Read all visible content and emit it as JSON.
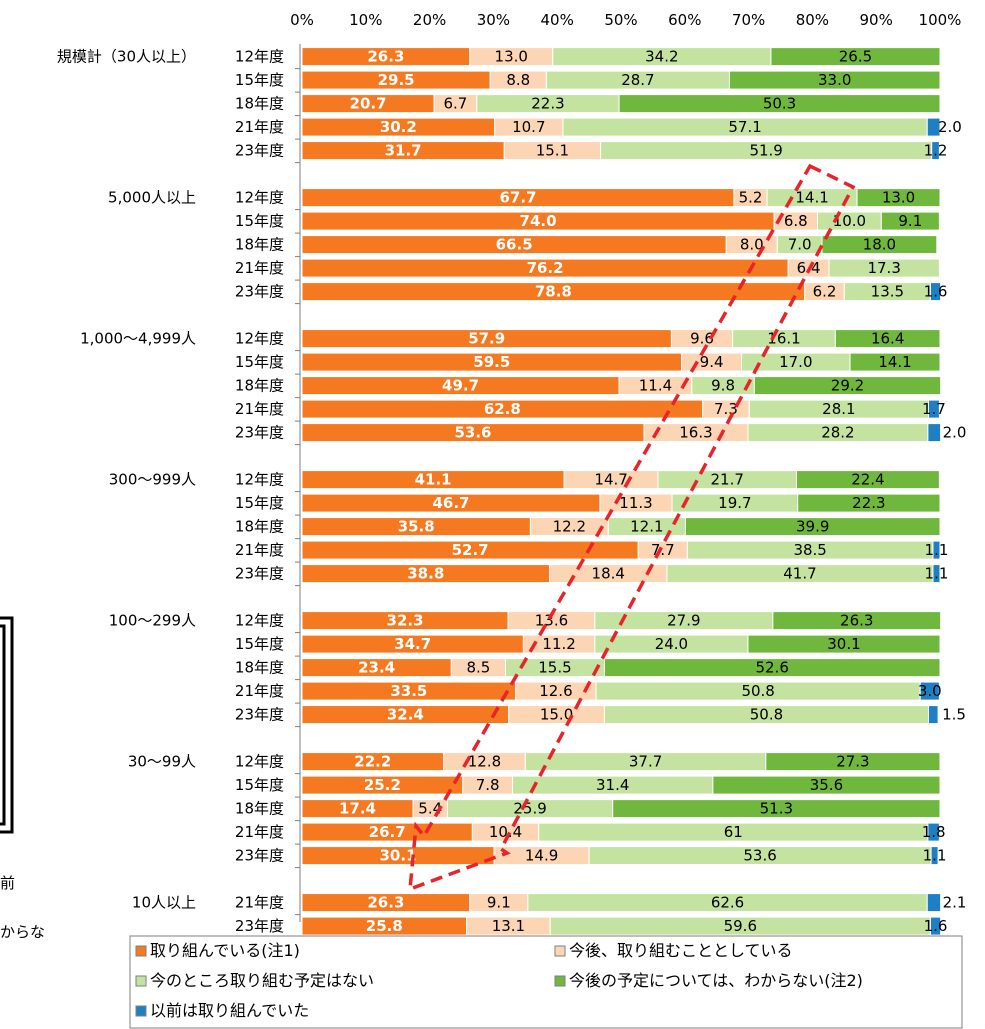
{
  "chart_data": {
    "type": "bar",
    "orientation": "horizontal",
    "stacked": true,
    "percent": true,
    "xlim": [
      0,
      100
    ],
    "x_ticks": [
      "0%",
      "10%",
      "20%",
      "30%",
      "40%",
      "50%",
      "60%",
      "70%",
      "80%",
      "90%",
      "100%"
    ],
    "grid": false,
    "legend_position": "bottom",
    "series": [
      {
        "name": "取り組んでいる(注1)",
        "color": "#f47920",
        "label_color": "#ffffff"
      },
      {
        "name": "今後、取り組むこととしている",
        "color": "#fcd5b4",
        "label_color": "#000000"
      },
      {
        "name": "今のところ取り組む予定はない",
        "color": "#c4e3a0",
        "label_color": "#000000"
      },
      {
        "name": "今後の予定については、わからない(注2)",
        "color": "#70b83d",
        "label_color": "#000000"
      },
      {
        "name": "以前は取り組んでいた",
        "color": "#1f7fc4",
        "label_color": "#000000"
      }
    ],
    "groups": [
      {
        "label": "規模計（30人以上）",
        "rows": [
          {
            "year": "12年度",
            "values": [
              26.3,
              13.0,
              34.2,
              26.5
            ],
            "labels": [
              "26.3",
              "13.0",
              "34.2",
              "26.5"
            ]
          },
          {
            "year": "15年度",
            "values": [
              29.5,
              8.8,
              28.7,
              33.0
            ],
            "labels": [
              "29.5",
              "8.8",
              "28.7",
              "33.0"
            ]
          },
          {
            "year": "18年度",
            "values": [
              20.7,
              6.7,
              22.3,
              50.3
            ],
            "labels": [
              "20.7",
              "6.7",
              "22.3",
              "50.3"
            ]
          },
          {
            "year": "21年度",
            "values": [
              30.2,
              10.7,
              57.1,
              0,
              2.0
            ],
            "labels": [
              "30.2",
              "10.7",
              "57.1",
              "",
              "2.0"
            ]
          },
          {
            "year": "23年度",
            "values": [
              31.7,
              15.1,
              51.9,
              0,
              1.2
            ],
            "labels": [
              "31.7",
              "15.1",
              "51.9",
              "",
              "1.2"
            ]
          }
        ]
      },
      {
        "label": "5,000人以上",
        "rows": [
          {
            "year": "12年度",
            "values": [
              67.7,
              5.2,
              14.1,
              13.0
            ],
            "labels": [
              "67.7",
              "5.2",
              "14.1",
              "13.0"
            ]
          },
          {
            "year": "15年度",
            "values": [
              74.0,
              6.8,
              10.0,
              9.1
            ],
            "labels": [
              "74.0",
              "6.8",
              "10.0",
              "9.1"
            ]
          },
          {
            "year": "18年度",
            "values": [
              66.5,
              8.0,
              7.0,
              18.0
            ],
            "labels": [
              "66.5",
              "8.0",
              "7.0",
              "18.0"
            ]
          },
          {
            "year": "21年度",
            "values": [
              76.2,
              6.4,
              17.3
            ],
            "labels": [
              "76.2",
              "6.4",
              "17.3"
            ]
          },
          {
            "year": "23年度",
            "values": [
              78.8,
              6.2,
              13.5,
              0,
              1.6
            ],
            "labels": [
              "78.8",
              "6.2",
              "13.5",
              "",
              "1.6"
            ]
          }
        ]
      },
      {
        "label": "1,000～4,999人",
        "rows": [
          {
            "year": "12年度",
            "values": [
              57.9,
              9.6,
              16.1,
              16.4
            ],
            "labels": [
              "57.9",
              "9.6",
              "16.1",
              "16.4"
            ]
          },
          {
            "year": "15年度",
            "values": [
              59.5,
              9.4,
              17.0,
              14.1
            ],
            "labels": [
              "59.5",
              "9.4",
              "17.0",
              "14.1"
            ]
          },
          {
            "year": "18年度",
            "values": [
              49.7,
              11.4,
              9.8,
              29.2
            ],
            "labels": [
              "49.7",
              "11.4",
              "9.8",
              "29.2"
            ]
          },
          {
            "year": "21年度",
            "values": [
              62.8,
              7.3,
              28.1,
              0,
              1.7
            ],
            "labels": [
              "62.8",
              "7.3",
              "28.1",
              "",
              "1.7"
            ]
          },
          {
            "year": "23年度",
            "values": [
              53.6,
              16.3,
              28.2,
              0,
              2.0
            ],
            "labels": [
              "53.6",
              "16.3",
              "28.2",
              "",
              "2.0"
            ]
          }
        ]
      },
      {
        "label": "300～999人",
        "rows": [
          {
            "year": "12年度",
            "values": [
              41.1,
              14.7,
              21.7,
              22.4
            ],
            "labels": [
              "41.1",
              "14.7",
              "21.7",
              "22.4"
            ]
          },
          {
            "year": "15年度",
            "values": [
              46.7,
              11.3,
              19.7,
              22.3
            ],
            "labels": [
              "46.7",
              "11.3",
              "19.7",
              "22.3"
            ]
          },
          {
            "year": "18年度",
            "values": [
              35.8,
              12.2,
              12.1,
              39.9
            ],
            "labels": [
              "35.8",
              "12.2",
              "12.1",
              "39.9"
            ]
          },
          {
            "year": "21年度",
            "values": [
              52.7,
              7.7,
              38.5,
              0,
              1.1
            ],
            "labels": [
              "52.7",
              "7.7",
              "38.5",
              "",
              "1.1"
            ]
          },
          {
            "year": "23年度",
            "values": [
              38.8,
              18.4,
              41.7,
              0,
              1.1
            ],
            "labels": [
              "38.8",
              "18.4",
              "41.7",
              "",
              "1.1"
            ]
          }
        ]
      },
      {
        "label": "100～299人",
        "rows": [
          {
            "year": "12年度",
            "values": [
              32.3,
              13.6,
              27.9,
              26.3
            ],
            "labels": [
              "32.3",
              "13.6",
              "27.9",
              "26.3"
            ]
          },
          {
            "year": "15年度",
            "values": [
              34.7,
              11.2,
              24.0,
              30.1
            ],
            "labels": [
              "34.7",
              "11.2",
              "24.0",
              "30.1"
            ]
          },
          {
            "year": "18年度",
            "values": [
              23.4,
              8.5,
              15.5,
              52.6
            ],
            "labels": [
              "23.4",
              "8.5",
              "15.5",
              "52.6"
            ]
          },
          {
            "year": "21年度",
            "values": [
              33.5,
              12.6,
              50.8,
              0,
              3.0
            ],
            "labels": [
              "33.5",
              "12.6",
              "50.8",
              "",
              "3.0"
            ]
          },
          {
            "year": "23年度",
            "values": [
              32.4,
              15.0,
              50.8,
              0,
              1.5
            ],
            "labels": [
              "32.4",
              "15.0",
              "50.8",
              "",
              "1.5"
            ]
          }
        ]
      },
      {
        "label": "30～99人",
        "rows": [
          {
            "year": "12年度",
            "values": [
              22.2,
              12.8,
              37.7,
              27.3
            ],
            "labels": [
              "22.2",
              "12.8",
              "37.7",
              "27.3"
            ]
          },
          {
            "year": "15年度",
            "values": [
              25.2,
              7.8,
              31.4,
              35.6
            ],
            "labels": [
              "25.2",
              "7.8",
              "31.4",
              "35.6"
            ]
          },
          {
            "year": "18年度",
            "values": [
              17.4,
              5.4,
              25.9,
              51.3
            ],
            "labels": [
              "17.4",
              "5.4",
              "25.9",
              "51.3"
            ]
          },
          {
            "year": "21年度",
            "values": [
              26.7,
              10.4,
              61,
              0,
              1.8
            ],
            "labels": [
              "26.7",
              "10.4",
              "61",
              "",
              "1.8"
            ]
          },
          {
            "year": "23年度",
            "values": [
              30.1,
              14.9,
              53.6,
              0,
              1.1
            ],
            "labels": [
              "30.1",
              "14.9",
              "53.6",
              "",
              "1.1"
            ]
          }
        ]
      },
      {
        "label": "10人以上",
        "rows": [
          {
            "year": "21年度",
            "values": [
              26.3,
              9.1,
              62.6,
              0,
              2.1
            ],
            "labels": [
              "26.3",
              "9.1",
              "62.6",
              "",
              "2.1"
            ]
          },
          {
            "year": "23年度",
            "values": [
              25.8,
              13.1,
              59.6,
              0,
              1.6
            ],
            "labels": [
              "25.8",
              "13.1",
              "59.6",
              "",
              "1.6"
            ]
          }
        ]
      }
    ],
    "annotation": {
      "type": "dashed-arrow",
      "color": "#e8232a"
    }
  },
  "cut_text": {
    "line1": "前",
    "line2": "からな"
  }
}
